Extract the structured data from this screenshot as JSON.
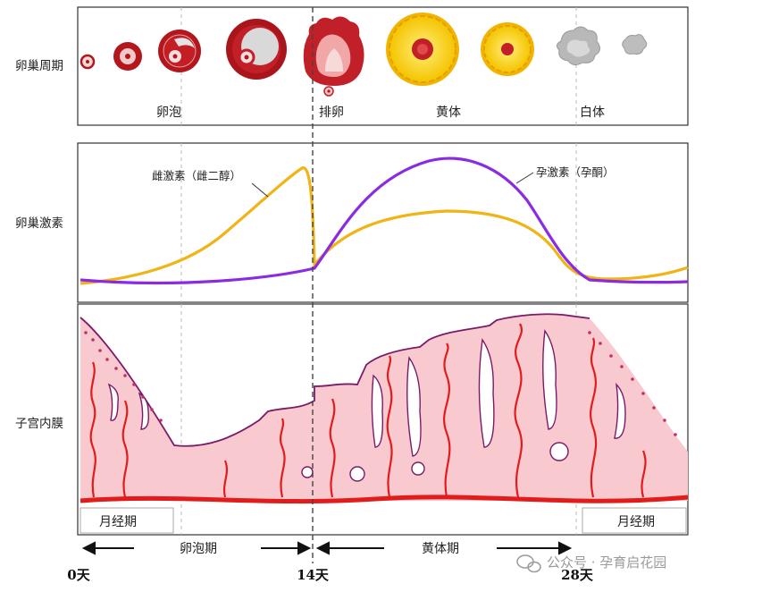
{
  "rows": {
    "ovary_cycle": "卵巢周期",
    "ovary_hormones": "卵巢激素",
    "endometrium": "子宫内膜"
  },
  "stages": {
    "follicle": "卵泡",
    "ovulation": "排卵",
    "corpus_luteum": "黄体",
    "corpus_albicans": "白体"
  },
  "hormones": {
    "estrogen": "雌激素（雌二醇）",
    "progesterone": "孕激素（孕酮）"
  },
  "menses_left": "月经期",
  "menses_right": "月经期",
  "phases": {
    "follicular": "卵泡期",
    "luteal": "黄体期"
  },
  "days": [
    "0天",
    "14天",
    "28天"
  ],
  "watermark": "公众号 · 孕育启花园",
  "colors": {
    "estrogen": "#f0b416",
    "progesterone": "#8a2be2",
    "endometrium_fill": "#f8c9cf",
    "vessel": "#e21b1b",
    "follicle": "#b3161c"
  },
  "icons": {
    "watermark": "wechat-icon"
  }
}
